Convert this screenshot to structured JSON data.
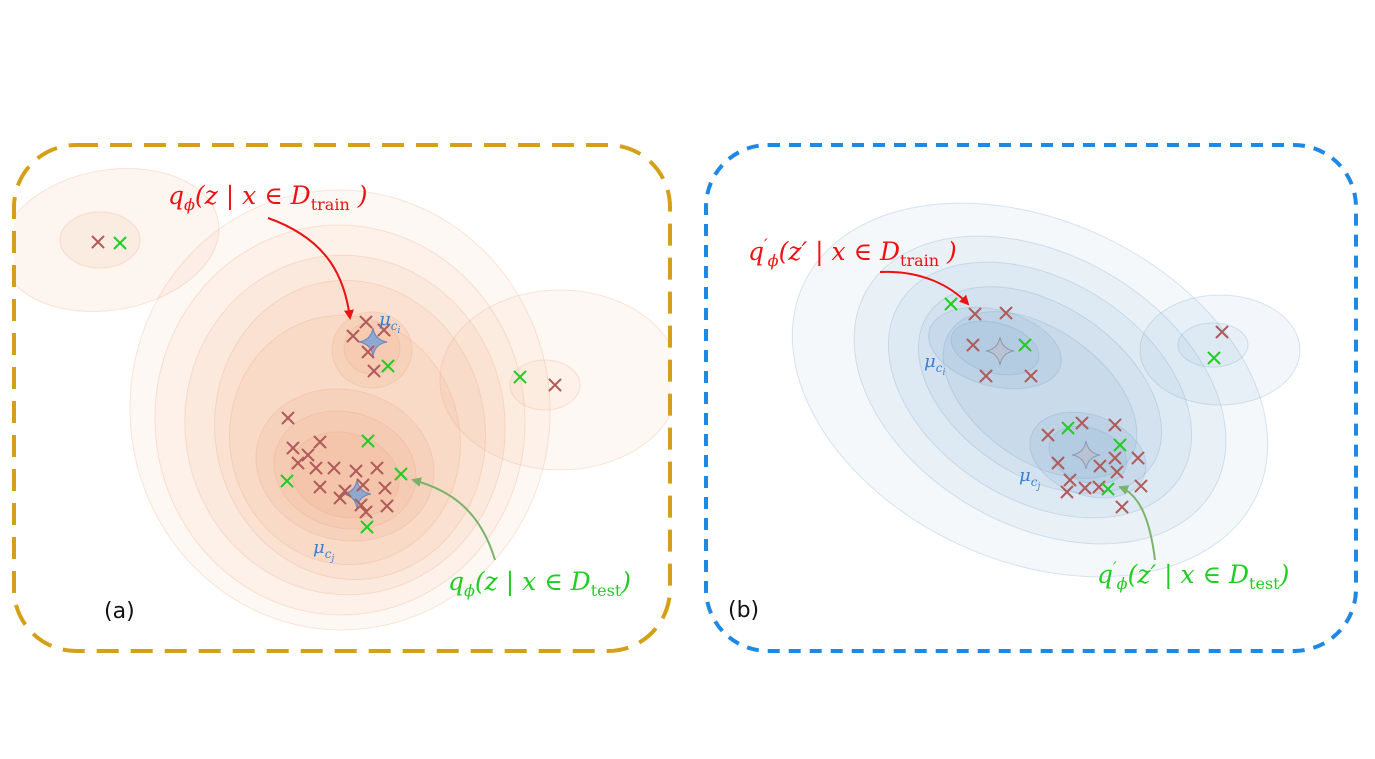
{
  "panel_a": {
    "label": "(a)",
    "border_color": "#D4A017",
    "train_label": {
      "prefix": "q",
      "sub": "ϕ",
      "body": "(z | x ∈ D",
      "set_sub": "train",
      "close": " )"
    },
    "test_label": {
      "prefix": "q",
      "sub": "ϕ",
      "body": "(z | x ∈ D",
      "set_sub": "test",
      "close": ")"
    },
    "centroid_i": {
      "sym": "μ",
      "sub": "c",
      "subsub": "i"
    },
    "centroid_j": {
      "sym": "μ",
      "sub": "c",
      "subsub": "j"
    }
  },
  "panel_b": {
    "label": "(b)",
    "border_color": "#1E88E5",
    "train_label": {
      "prefix": "q",
      "prime": "′",
      "sub": "ϕ",
      "body": "(z′ | x ∈ D",
      "set_sub": "train",
      "close": " )"
    },
    "test_label": {
      "prefix": "q",
      "prime": "′",
      "sub": "ϕ",
      "body": "(z′ | x ∈ D",
      "set_sub": "test",
      "close": ")"
    },
    "centroid_i": {
      "sym": "μ",
      "sub": "c",
      "subsub": "i"
    },
    "centroid_j": {
      "sym": "μ",
      "sub": "c",
      "subsub": "j"
    }
  },
  "colors": {
    "train_marker": "#B05A5A",
    "test_marker": "#22CC22",
    "train_text": "#EE1111",
    "test_text": "#22CC22",
    "centroid_text": "#3A7FD5",
    "density_a": "#F0A070",
    "density_b": "#6A9BC8"
  }
}
